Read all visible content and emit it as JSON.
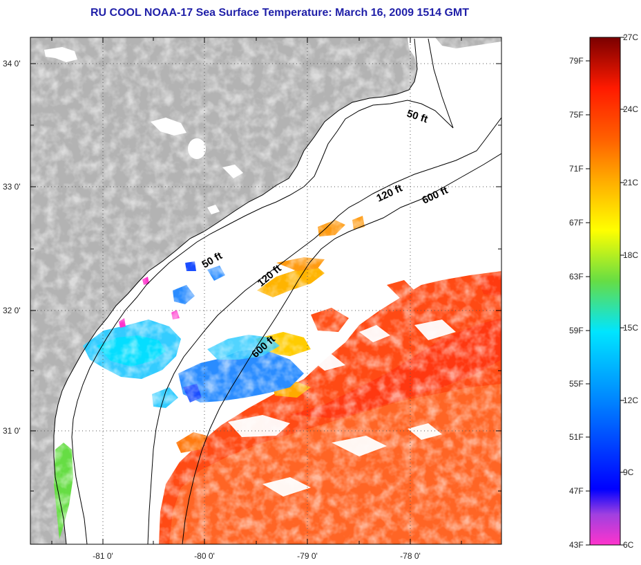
{
  "title": "RU COOL  NOAA-17  Sea Surface Temperature:  March 16, 2009 1514 GMT",
  "map": {
    "lat_labels": [
      "34 0'",
      "33 0'",
      "32 0'",
      "31 0'"
    ],
    "lon_labels": [
      "-81 0'",
      "-80 0'",
      "-79 0'",
      "-78 0'"
    ],
    "contour_labels": [
      "50 ft",
      "120 ft",
      "600 ft",
      "50 ft",
      "120 ft",
      "600 ft"
    ]
  },
  "colorbar": {
    "fahrenheit_labels": [
      "79F",
      "75F",
      "71F",
      "67F",
      "63F",
      "59F",
      "55F",
      "51F",
      "47F",
      "43F"
    ],
    "celsius_labels": [
      "27C",
      "24C",
      "21C",
      "18C",
      "15C",
      "12C",
      "9C",
      "6C"
    ],
    "colors": {
      "magenta": "#ff33cc",
      "violet": "#7a2ad6",
      "blue": "#0000ff",
      "cyan": "#00e5ff",
      "green": "#66dd44",
      "yellow": "#ffff00",
      "orange": "#ff8a00",
      "red": "#ff2200",
      "darkred": "#7a0000"
    }
  },
  "colors": {
    "land": "#b3b3b3",
    "ocean_missing": "#ffffff",
    "warm": "#ff3a10",
    "gulfstream": "#ff5a20",
    "title": "#1f1fa8"
  }
}
